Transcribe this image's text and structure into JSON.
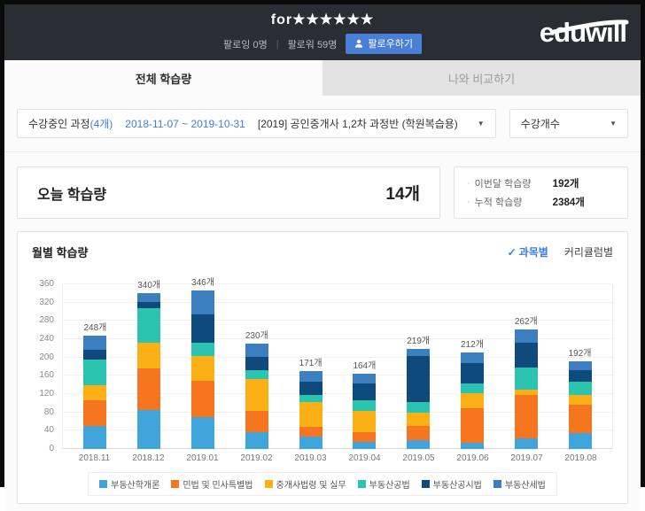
{
  "header": {
    "profile_name": "for★★★★★★",
    "following": "팔로잉 0명",
    "separator": "|",
    "follower": "팔로워 59명",
    "follow_button": "팔로우하기",
    "logo": "eduwill"
  },
  "tabs": [
    {
      "label": "전체 학습량"
    },
    {
      "label": "나와 비교하기"
    }
  ],
  "filters": {
    "course_label": "수강중인 과정",
    "course_count": "(4개)",
    "date_range": "2018-11-07 ~ 2019-10-31",
    "course_name": "[2019] 공인중개사 1,2차 과정반 (학원복습용)",
    "count_select": "수강개수"
  },
  "today": {
    "title": "오늘 학습량",
    "value": "14개",
    "stats": [
      {
        "bullet": "·",
        "label": "이번달 학습량",
        "value": "192개"
      },
      {
        "bullet": "·",
        "label": "누적 학습량",
        "value": "2384개"
      }
    ]
  },
  "chart": {
    "title": "월별 학습량",
    "subject_view": "과목별",
    "curriculum_view": "커리큘럼별"
  },
  "icons": {
    "check": "✓",
    "dropdown_arrow": "▼"
  },
  "colors": {
    "accent_blue": "#3f7de0",
    "header_bg": "#2b2d34",
    "follow_button_bg": "#4a7fd8"
  },
  "chart_data": {
    "type": "bar",
    "stacked": true,
    "title": "월별 학습량",
    "categories": [
      "2018.11",
      "2018.12",
      "2019.01",
      "2019.02",
      "2019.03",
      "2019.04",
      "2019.05",
      "2019.06",
      "2019.07",
      "2019.08"
    ],
    "totals": [
      248,
      340,
      346,
      230,
      171,
      164,
      219,
      212,
      262,
      192
    ],
    "unit": "개",
    "ylim": [
      0,
      360
    ],
    "ytick_step": 40,
    "grid": true,
    "legend_position": "bottom",
    "series": [
      {
        "name": "부동산학개론",
        "color": "#41a5dc",
        "values": [
          50,
          86,
          70,
          37,
          27,
          16,
          20,
          14,
          24,
          34
        ]
      },
      {
        "name": "민법 및 민사특별법",
        "color": "#f5761f",
        "values": [
          56,
          90,
          79,
          46,
          22,
          21,
          31,
          75,
          94,
          62
        ]
      },
      {
        "name": "중개사법령 및 실무",
        "color": "#fbb016",
        "values": [
          33,
          57,
          55,
          69,
          54,
          47,
          28,
          33,
          11,
          22
        ]
      },
      {
        "name": "부동산공법",
        "color": "#2bc4b0",
        "values": [
          57,
          74,
          29,
          20,
          16,
          22,
          24,
          21,
          49,
          29
        ]
      },
      {
        "name": "부동산공시법",
        "color": "#0e4a7c",
        "values": [
          21,
          15,
          61,
          30,
          28,
          37,
          100,
          44,
          54,
          25
        ]
      },
      {
        "name": "부동산세법",
        "color": "#3c7fc1",
        "values": [
          31,
          18,
          52,
          28,
          24,
          21,
          16,
          25,
          30,
          20
        ]
      }
    ]
  }
}
